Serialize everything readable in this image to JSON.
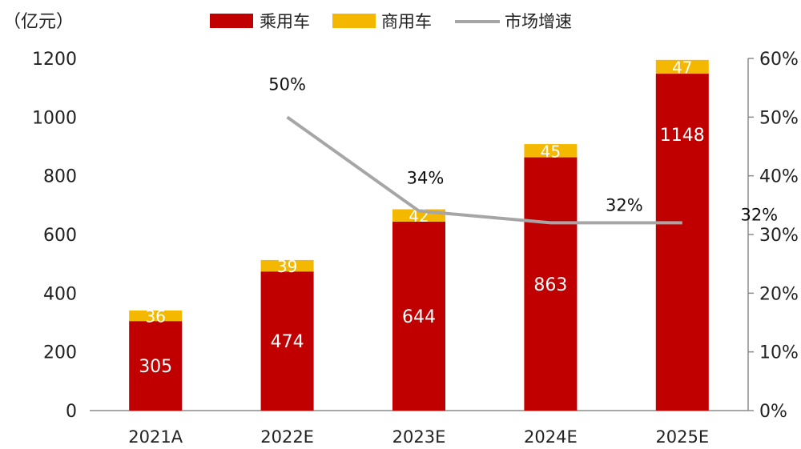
{
  "chart_data": {
    "type": "bar",
    "unit_label": "（亿元）",
    "categories": [
      "2021A",
      "2022E",
      "2023E",
      "2024E",
      "2025E"
    ],
    "series": [
      {
        "name": "乘用车",
        "type": "bar",
        "axis": "left",
        "color": "#C00000",
        "values": [
          305,
          474,
          644,
          863,
          1148
        ]
      },
      {
        "name": "商用车",
        "type": "bar",
        "axis": "left",
        "color": "#F5B800",
        "values": [
          36,
          39,
          42,
          45,
          47
        ]
      },
      {
        "name": "市场增速",
        "type": "line",
        "axis": "right",
        "color": "#A6A6A6",
        "values": [
          null,
          0.5,
          0.34,
          0.32,
          0.32
        ],
        "labels": [
          "",
          "50%",
          "34%",
          "32%",
          "32%"
        ]
      }
    ],
    "stacked": true,
    "y_left": {
      "min": 0,
      "max": 1200,
      "ticks": [
        0,
        200,
        400,
        600,
        800,
        1000,
        1200
      ]
    },
    "y_right": {
      "min": 0,
      "max": 0.6,
      "ticks": [
        "0%",
        "10%",
        "20%",
        "30%",
        "40%",
        "50%",
        "60%"
      ]
    },
    "legend": "top",
    "grid": false
  }
}
